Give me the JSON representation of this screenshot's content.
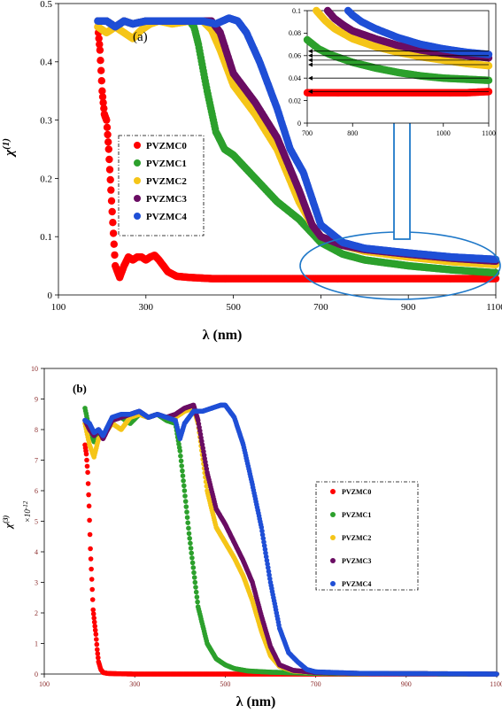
{
  "colors": {
    "PVZMC0": "#ff0000",
    "PVZMC1": "#2ca02c",
    "PVZMC2": "#f5c518",
    "PVZMC3": "#6a0d63",
    "PVZMC4": "#1f4fd6",
    "ellipse": "#1f78c8",
    "arrow": "#1f78c8"
  },
  "chart_data": [
    {
      "panel_label": "(a)",
      "type": "scatter",
      "xlabel": "λ (nm)",
      "ylabel_main": "χ",
      "ylabel_sup": "(1)",
      "xlim": [
        100,
        1100
      ],
      "ylim": [
        0,
        0.5
      ],
      "xticks": [
        100,
        300,
        500,
        700,
        900,
        1100
      ],
      "yticks": [
        0,
        0.1,
        0.2,
        0.3,
        0.4,
        0.5
      ],
      "legend": [
        "PVZMC0",
        "PVZMC1",
        "PVZMC2",
        "PVZMC3",
        "PVZMC4"
      ],
      "series": [
        {
          "name": "PVZMC0",
          "x": [
            190,
            195,
            200,
            205,
            210,
            215,
            220,
            230,
            240,
            250,
            260,
            270,
            280,
            290,
            300,
            310,
            320,
            330,
            340,
            350,
            370,
            400,
            450,
            500,
            600,
            700,
            800,
            900,
            1000,
            1100
          ],
          "y": [
            0.46,
            0.42,
            0.35,
            0.31,
            0.3,
            0.25,
            0.18,
            0.05,
            0.03,
            0.05,
            0.065,
            0.06,
            0.065,
            0.065,
            0.06,
            0.065,
            0.068,
            0.06,
            0.05,
            0.04,
            0.032,
            0.03,
            0.028,
            0.028,
            0.028,
            0.028,
            0.028,
            0.028,
            0.028,
            0.028
          ]
        },
        {
          "name": "PVZMC1",
          "x": [
            190,
            210,
            230,
            250,
            270,
            300,
            330,
            360,
            390,
            400,
            410,
            420,
            440,
            460,
            480,
            500,
            550,
            600,
            650,
            700,
            750,
            800,
            900,
            1000,
            1100
          ],
          "y": [
            0.47,
            0.47,
            0.46,
            0.47,
            0.465,
            0.47,
            0.47,
            0.47,
            0.47,
            0.47,
            0.46,
            0.43,
            0.35,
            0.28,
            0.25,
            0.24,
            0.2,
            0.16,
            0.13,
            0.09,
            0.07,
            0.06,
            0.05,
            0.043,
            0.038
          ]
        },
        {
          "name": "PVZMC2",
          "x": [
            190,
            210,
            230,
            250,
            270,
            290,
            310,
            330,
            360,
            400,
            430,
            450,
            470,
            500,
            550,
            600,
            650,
            680,
            700,
            750,
            800,
            900,
            1000,
            1100
          ],
          "y": [
            0.46,
            0.45,
            0.46,
            0.45,
            0.44,
            0.455,
            0.465,
            0.47,
            0.465,
            0.47,
            0.47,
            0.455,
            0.42,
            0.36,
            0.31,
            0.25,
            0.16,
            0.12,
            0.1,
            0.085,
            0.075,
            0.065,
            0.057,
            0.052
          ]
        },
        {
          "name": "PVZMC3",
          "x": [
            190,
            210,
            230,
            250,
            270,
            300,
            330,
            360,
            400,
            430,
            450,
            470,
            500,
            550,
            600,
            650,
            680,
            700,
            750,
            800,
            900,
            1000,
            1100
          ],
          "y": [
            0.47,
            0.47,
            0.46,
            0.47,
            0.465,
            0.47,
            0.47,
            0.47,
            0.47,
            0.47,
            0.47,
            0.45,
            0.38,
            0.33,
            0.27,
            0.18,
            0.12,
            0.1,
            0.085,
            0.078,
            0.07,
            0.063,
            0.058
          ]
        },
        {
          "name": "PVZMC4",
          "x": [
            190,
            210,
            230,
            250,
            270,
            300,
            330,
            360,
            400,
            430,
            460,
            490,
            510,
            530,
            560,
            600,
            630,
            660,
            700,
            750,
            800,
            900,
            1000,
            1100
          ],
          "y": [
            0.47,
            0.47,
            0.46,
            0.47,
            0.465,
            0.47,
            0.47,
            0.47,
            0.47,
            0.47,
            0.465,
            0.475,
            0.47,
            0.45,
            0.4,
            0.32,
            0.25,
            0.21,
            0.12,
            0.09,
            0.08,
            0.072,
            0.065,
            0.061
          ]
        }
      ],
      "inset": {
        "xlim": [
          700,
          1100
        ],
        "ylim": [
          0,
          0.1
        ],
        "xticks": [
          700,
          800,
          1000,
          1100
        ],
        "yticks": [
          0,
          0.02,
          0.04,
          0.06,
          0.08,
          0.1
        ],
        "series": [
          {
            "name": "PVZMC0",
            "x": [
              700,
              750,
              800,
              850,
              900,
              950,
              1000,
              1050,
              1100
            ],
            "y": [
              0.027,
              0.027,
              0.027,
              0.027,
              0.027,
              0.027,
              0.027,
              0.027,
              0.028
            ]
          },
          {
            "name": "PVZMC1",
            "x": [
              700,
              725,
              750,
              800,
              850,
              900,
              950,
              1000,
              1050,
              1100
            ],
            "y": [
              0.074,
              0.066,
              0.061,
              0.054,
              0.049,
              0.045,
              0.042,
              0.04,
              0.039,
              0.038
            ]
          },
          {
            "name": "PVZMC2",
            "x": [
              720,
              740,
              760,
              800,
              850,
              900,
              950,
              1000,
              1050,
              1100
            ],
            "y": [
              0.1,
              0.091,
              0.084,
              0.075,
              0.068,
              0.063,
              0.059,
              0.056,
              0.053,
              0.051
            ]
          },
          {
            "name": "PVZMC3",
            "x": [
              745,
              760,
              780,
              800,
              850,
              900,
              950,
              1000,
              1050,
              1100
            ],
            "y": [
              0.1,
              0.093,
              0.087,
              0.082,
              0.075,
              0.069,
              0.065,
              0.062,
              0.06,
              0.058
            ]
          },
          {
            "name": "PVZMC4",
            "x": [
              790,
              800,
              820,
              850,
              900,
              950,
              1000,
              1050,
              1100
            ],
            "y": [
              0.1,
              0.096,
              0.09,
              0.084,
              0.076,
              0.07,
              0.066,
              0.063,
              0.061
            ]
          }
        ],
        "arrow_levels": [
          0.064,
          0.06,
          0.056,
          0.052,
          0.04,
          0.028
        ]
      }
    },
    {
      "panel_label": "(b)",
      "type": "scatter",
      "xlabel": "λ (nm)",
      "ylabel_main": "χ",
      "ylabel_sup": "(3)",
      "unit_label": "×10",
      "unit_sup": "-12",
      "xlim": [
        100,
        1100
      ],
      "ylim": [
        0,
        10
      ],
      "xticks": [
        100,
        300,
        500,
        700,
        900,
        1100
      ],
      "yticks": [
        0,
        1,
        2,
        3,
        4,
        5,
        6,
        7,
        8,
        9,
        10
      ],
      "legend": [
        "PVZMC0",
        "PVZMC1",
        "PVZMC2",
        "PVZMC3",
        "PVZMC4"
      ],
      "series": [
        {
          "name": "PVZMC0",
          "x": [
            190,
            193,
            196,
            199,
            202,
            205,
            208,
            211,
            214,
            217,
            220,
            225,
            230,
            240,
            260,
            300,
            400,
            500,
            600,
            700,
            800,
            900,
            1000,
            1100
          ],
          "y": [
            7.5,
            7.2,
            6.6,
            5.5,
            4.1,
            3.1,
            2.1,
            1.7,
            1.3,
            0.8,
            0.4,
            0.15,
            0.05,
            0.02,
            0.01,
            0,
            0,
            0,
            0,
            0,
            0,
            0,
            0,
            0
          ]
        },
        {
          "name": "PVZMC1",
          "x": [
            190,
            200,
            210,
            220,
            230,
            250,
            270,
            290,
            310,
            330,
            350,
            370,
            390,
            400,
            410,
            420,
            440,
            460,
            480,
            500,
            520,
            550,
            600,
            650,
            700,
            800,
            1100
          ],
          "y": [
            8.7,
            8.0,
            7.6,
            7.9,
            7.8,
            8.3,
            8.4,
            8.2,
            8.5,
            8.4,
            8.5,
            8.3,
            8.2,
            7.3,
            6.0,
            4.6,
            2.2,
            1.0,
            0.5,
            0.3,
            0.18,
            0.1,
            0.06,
            0.04,
            0.02,
            0.01,
            0
          ]
        },
        {
          "name": "PVZMC2",
          "x": [
            190,
            200,
            210,
            220,
            230,
            250,
            270,
            290,
            310,
            330,
            350,
            370,
            390,
            410,
            430,
            440,
            460,
            480,
            500,
            520,
            540,
            560,
            580,
            600,
            620,
            650,
            700,
            800,
            1100
          ],
          "y": [
            8.2,
            7.5,
            7.1,
            7.7,
            7.8,
            8.2,
            8.0,
            8.4,
            8.5,
            8.4,
            8.5,
            8.4,
            8.4,
            8.6,
            8.7,
            8.2,
            6.0,
            4.8,
            4.3,
            3.8,
            3.2,
            2.4,
            1.4,
            0.6,
            0.25,
            0.1,
            0.05,
            0.02,
            0
          ]
        },
        {
          "name": "PVZMC3",
          "x": [
            190,
            200,
            210,
            220,
            230,
            250,
            270,
            290,
            310,
            330,
            350,
            370,
            390,
            410,
            430,
            440,
            460,
            480,
            500,
            520,
            540,
            560,
            580,
            600,
            620,
            650,
            700,
            800,
            1100
          ],
          "y": [
            8.3,
            8.0,
            7.8,
            8.0,
            7.7,
            8.3,
            8.4,
            8.5,
            8.6,
            8.4,
            8.5,
            8.4,
            8.5,
            8.7,
            8.8,
            8.3,
            6.6,
            5.4,
            4.9,
            4.3,
            3.7,
            3.0,
            1.9,
            0.9,
            0.3,
            0.12,
            0.05,
            0.02,
            0
          ]
        },
        {
          "name": "PVZMC4",
          "x": [
            190,
            200,
            210,
            220,
            230,
            250,
            270,
            290,
            310,
            330,
            350,
            370,
            390,
            400,
            410,
            430,
            450,
            470,
            490,
            500,
            520,
            540,
            560,
            580,
            600,
            620,
            640,
            660,
            680,
            700,
            800,
            1100
          ],
          "y": [
            8.3,
            8.2,
            7.9,
            8.0,
            7.8,
            8.4,
            8.5,
            8.5,
            8.6,
            8.4,
            8.5,
            8.4,
            8.3,
            7.7,
            8.2,
            8.6,
            8.6,
            8.7,
            8.8,
            8.8,
            8.4,
            7.5,
            6.2,
            4.8,
            3.0,
            1.5,
            0.7,
            0.4,
            0.15,
            0.07,
            0.02,
            0
          ]
        }
      ]
    }
  ]
}
